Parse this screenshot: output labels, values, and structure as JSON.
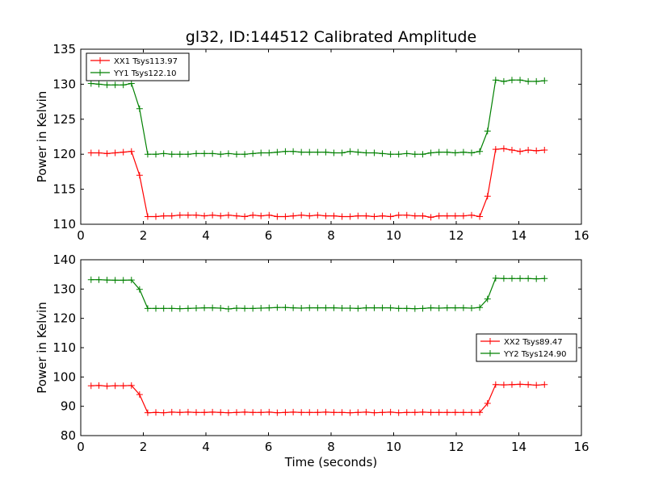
{
  "chart_data": [
    {
      "type": "line",
      "title": "gl32, ID:144512 Calibrated Amplitude",
      "xlabel": "",
      "ylabel": "Power in Kelvin",
      "xlim": [
        0,
        16
      ],
      "ylim": [
        110,
        135
      ],
      "xticks": [
        0,
        2,
        4,
        6,
        8,
        10,
        12,
        14,
        16
      ],
      "yticks": [
        110,
        115,
        120,
        125,
        130,
        135
      ],
      "legend_position": "upper-left",
      "grid": false,
      "x": [
        0.33,
        0.58,
        0.84,
        1.1,
        1.36,
        1.62,
        1.88,
        2.14,
        2.4,
        2.65,
        2.91,
        3.17,
        3.43,
        3.69,
        3.95,
        4.21,
        4.47,
        4.72,
        4.98,
        5.24,
        5.5,
        5.76,
        6.02,
        6.28,
        6.54,
        6.79,
        7.05,
        7.31,
        7.57,
        7.83,
        8.09,
        8.35,
        8.61,
        8.86,
        9.12,
        9.38,
        9.64,
        9.9,
        10.16,
        10.42,
        10.68,
        10.93,
        11.19,
        11.45,
        11.71,
        11.97,
        12.23,
        12.49,
        12.75,
        13.0,
        13.26,
        13.52,
        13.78,
        14.04,
        14.3,
        14.56,
        14.82
      ],
      "series": [
        {
          "name": "XX1 Tsys113.97",
          "color": "#ff0000",
          "values": [
            120.2,
            120.2,
            120.1,
            120.2,
            120.3,
            120.4,
            117.0,
            111.1,
            111.1,
            111.2,
            111.2,
            111.3,
            111.3,
            111.3,
            111.2,
            111.3,
            111.2,
            111.3,
            111.2,
            111.1,
            111.3,
            111.2,
            111.3,
            111.1,
            111.1,
            111.2,
            111.3,
            111.2,
            111.3,
            111.2,
            111.2,
            111.1,
            111.1,
            111.2,
            111.2,
            111.1,
            111.2,
            111.1,
            111.3,
            111.3,
            111.2,
            111.2,
            111.0,
            111.2,
            111.2,
            111.2,
            111.2,
            111.3,
            111.1,
            114.0,
            120.7,
            120.8,
            120.6,
            120.4,
            120.6,
            120.5,
            120.6
          ]
        },
        {
          "name": "YY1 Tsys122.10",
          "color": "#008000",
          "values": [
            130.1,
            130.0,
            129.9,
            129.9,
            129.9,
            130.1,
            126.5,
            120.0,
            120.0,
            120.1,
            120.0,
            120.0,
            120.0,
            120.1,
            120.1,
            120.1,
            120.0,
            120.1,
            120.0,
            120.0,
            120.1,
            120.2,
            120.2,
            120.3,
            120.4,
            120.4,
            120.3,
            120.3,
            120.3,
            120.3,
            120.2,
            120.2,
            120.4,
            120.3,
            120.2,
            120.2,
            120.1,
            120.0,
            120.0,
            120.1,
            120.0,
            120.0,
            120.2,
            120.3,
            120.3,
            120.2,
            120.3,
            120.2,
            120.4,
            123.3,
            130.6,
            130.4,
            130.6,
            130.6,
            130.4,
            130.4,
            130.5
          ]
        }
      ]
    },
    {
      "type": "line",
      "title": "",
      "xlabel": "Time (seconds)",
      "ylabel": "Power in Kelvin",
      "xlim": [
        0,
        16
      ],
      "ylim": [
        80,
        140
      ],
      "xticks": [
        0,
        2,
        4,
        6,
        8,
        10,
        12,
        14,
        16
      ],
      "yticks": [
        80,
        90,
        100,
        110,
        120,
        130,
        140
      ],
      "legend_position": "center-right",
      "grid": false,
      "x": [
        0.33,
        0.58,
        0.84,
        1.1,
        1.36,
        1.62,
        1.88,
        2.14,
        2.4,
        2.65,
        2.91,
        3.17,
        3.43,
        3.69,
        3.95,
        4.21,
        4.47,
        4.72,
        4.98,
        5.24,
        5.5,
        5.76,
        6.02,
        6.28,
        6.54,
        6.79,
        7.05,
        7.31,
        7.57,
        7.83,
        8.09,
        8.35,
        8.61,
        8.86,
        9.12,
        9.38,
        9.64,
        9.9,
        10.16,
        10.42,
        10.68,
        10.93,
        11.19,
        11.45,
        11.71,
        11.97,
        12.23,
        12.49,
        12.75,
        13.0,
        13.26,
        13.52,
        13.78,
        14.04,
        14.3,
        14.56,
        14.82
      ],
      "series": [
        {
          "name": "XX2 Tsys89.47",
          "color": "#ff0000",
          "values": [
            97.0,
            97.1,
            96.9,
            97.0,
            97.0,
            97.1,
            94.0,
            87.8,
            87.9,
            87.8,
            88.0,
            87.9,
            88.0,
            87.9,
            87.9,
            88.0,
            87.9,
            87.8,
            87.9,
            88.0,
            87.9,
            87.9,
            88.0,
            87.8,
            87.9,
            88.0,
            87.9,
            87.9,
            87.9,
            88.0,
            87.9,
            87.9,
            87.8,
            87.9,
            88.0,
            87.8,
            87.9,
            88.0,
            87.8,
            87.9,
            87.9,
            88.0,
            87.9,
            87.9,
            87.9,
            87.9,
            87.9,
            87.9,
            87.9,
            91.0,
            97.4,
            97.3,
            97.4,
            97.5,
            97.4,
            97.2,
            97.4
          ]
        },
        {
          "name": "YY2 Tsys124.90",
          "color": "#008000",
          "values": [
            133.2,
            133.2,
            133.1,
            133.0,
            133.0,
            133.1,
            129.9,
            123.4,
            123.4,
            123.4,
            123.4,
            123.3,
            123.4,
            123.5,
            123.6,
            123.6,
            123.5,
            123.2,
            123.5,
            123.4,
            123.4,
            123.5,
            123.6,
            123.7,
            123.7,
            123.6,
            123.5,
            123.6,
            123.6,
            123.6,
            123.6,
            123.5,
            123.5,
            123.4,
            123.6,
            123.6,
            123.6,
            123.6,
            123.4,
            123.4,
            123.3,
            123.4,
            123.6,
            123.5,
            123.6,
            123.6,
            123.6,
            123.5,
            123.7,
            126.6,
            133.7,
            133.6,
            133.6,
            133.6,
            133.6,
            133.5,
            133.6
          ]
        }
      ]
    }
  ]
}
